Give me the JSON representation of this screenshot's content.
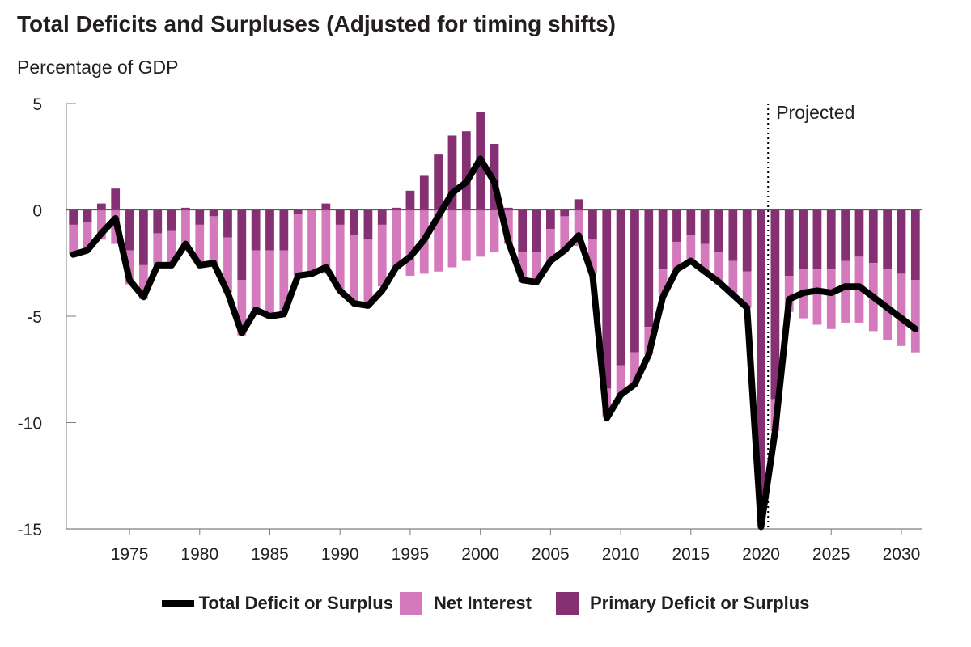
{
  "chart_data": {
    "type": "bar",
    "title": "Total Deficits and Surpluses (Adjusted for timing shifts)",
    "subtitle": "Percentage of GDP",
    "xlabel": "",
    "ylabel": "Percentage of GDP",
    "ylim": [
      -15,
      5
    ],
    "y_ticks": [
      "5",
      "0",
      "-5",
      "-10",
      "-15"
    ],
    "y_tick_values": [
      5,
      0,
      -5,
      -10,
      -15
    ],
    "x_tick_years": [
      1975,
      1980,
      1985,
      1990,
      1995,
      2000,
      2005,
      2010,
      2015,
      2020,
      2025,
      2030
    ],
    "years": [
      1971,
      1972,
      1973,
      1974,
      1975,
      1976,
      1977,
      1978,
      1979,
      1980,
      1981,
      1982,
      1983,
      1984,
      1985,
      1986,
      1987,
      1988,
      1989,
      1990,
      1991,
      1992,
      1993,
      1994,
      1995,
      1996,
      1997,
      1998,
      1999,
      2000,
      2001,
      2002,
      2003,
      2004,
      2005,
      2006,
      2007,
      2008,
      2009,
      2010,
      2011,
      2012,
      2013,
      2014,
      2015,
      2016,
      2017,
      2018,
      2019,
      2020,
      2021,
      2022,
      2023,
      2024,
      2025,
      2026,
      2027,
      2028,
      2029,
      2030,
      2031
    ],
    "series": [
      {
        "name": "Net Interest",
        "type": "bar",
        "values": [
          -1.4,
          -1.3,
          -1.4,
          -1.6,
          -1.6,
          -1.6,
          -1.5,
          -1.6,
          -1.7,
          -1.9,
          -2.2,
          -2.6,
          -2.6,
          -2.9,
          -3.0,
          -2.9,
          -2.9,
          -2.9,
          -3.0,
          -3.1,
          -3.1,
          -3.0,
          -2.9,
          -2.8,
          -3.1,
          -3.0,
          -2.9,
          -2.7,
          -2.4,
          -2.2,
          -2.0,
          -1.6,
          -1.4,
          -1.4,
          -1.5,
          -1.7,
          -1.7,
          -1.6,
          -1.3,
          -1.4,
          -1.5,
          -1.3,
          -1.2,
          -1.3,
          -1.3,
          -1.4,
          -1.5,
          -1.6,
          -1.7,
          -1.6,
          -1.5,
          -1.7,
          -2.3,
          -2.6,
          -2.8,
          -2.9,
          -3.1,
          -3.2,
          -3.3,
          -3.4,
          -3.4
        ]
      },
      {
        "name": "Primary Deficit or Surplus",
        "type": "bar",
        "values": [
          -0.7,
          -0.6,
          0.3,
          1.0,
          -1.9,
          -2.6,
          -1.1,
          -1.0,
          0.1,
          -0.7,
          -0.3,
          -1.3,
          -3.3,
          -1.9,
          -1.9,
          -1.9,
          -0.2,
          0.0,
          0.3,
          -0.7,
          -1.2,
          -1.4,
          -0.7,
          0.1,
          0.9,
          1.6,
          2.6,
          3.5,
          3.7,
          4.6,
          3.1,
          0.1,
          -2.0,
          -2.0,
          -0.9,
          -0.3,
          0.5,
          -1.4,
          -8.4,
          -7.3,
          -6.7,
          -5.5,
          -2.8,
          -1.5,
          -1.2,
          -1.6,
          -2.0,
          -2.4,
          -2.9,
          -13.3,
          -8.9,
          -3.1,
          -2.8,
          -2.8,
          -2.8,
          -2.4,
          -2.2,
          -2.5,
          -2.8,
          -3.0,
          -3.3
        ]
      },
      {
        "name": "Total Deficit or Surplus",
        "type": "line",
        "values": [
          -2.1,
          -1.9,
          -1.1,
          -0.4,
          -3.3,
          -4.1,
          -2.6,
          -2.6,
          -1.6,
          -2.6,
          -2.5,
          -3.9,
          -5.8,
          -4.7,
          -5.0,
          -4.9,
          -3.1,
          -3.0,
          -2.7,
          -3.8,
          -4.4,
          -4.5,
          -3.8,
          -2.7,
          -2.2,
          -1.4,
          -0.3,
          0.8,
          1.3,
          2.4,
          1.3,
          -1.5,
          -3.3,
          -3.4,
          -2.4,
          -1.9,
          -1.2,
          -3.1,
          -9.8,
          -8.7,
          -8.2,
          -6.8,
          -4.1,
          -2.8,
          -2.4,
          -2.9,
          -3.4,
          -4.0,
          -4.6,
          -14.9,
          -10.4,
          -4.2,
          -3.9,
          -3.8,
          -3.9,
          -3.6,
          -3.6,
          -4.1,
          -4.6,
          -5.1,
          -5.6
        ]
      }
    ],
    "annotation": {
      "text": "Projected",
      "x_year": 2020.5
    },
    "colors": {
      "net_interest": "#d479bb",
      "primary": "#853072",
      "total_line": "#000000",
      "axis": "#7f7f7f",
      "baseline": "#5a5a5a"
    }
  },
  "legend": {
    "total_label": "Total Deficit or Surplus",
    "interest_label": "Net Interest",
    "primary_label": "Primary Deficit or Surplus"
  }
}
